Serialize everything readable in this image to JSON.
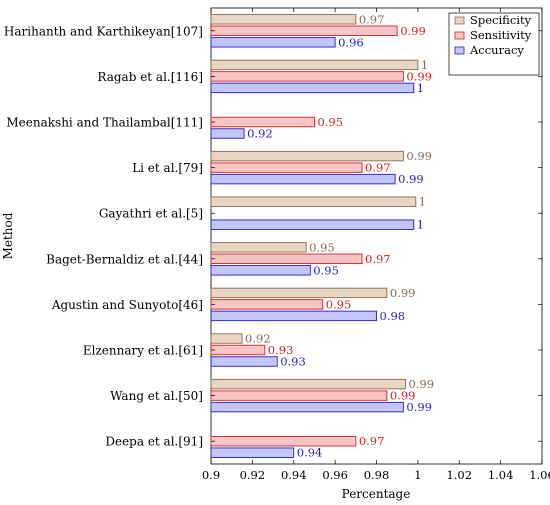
{
  "chart_data": {
    "type": "bar",
    "orientation": "horizontal",
    "title": "",
    "xlabel": "Percentage",
    "ylabel": "Method",
    "xlim": [
      0.9,
      1.06
    ],
    "xticks": [
      "0.9",
      "0.92",
      "0.94",
      "0.96",
      "0.98",
      "1",
      "1.02",
      "1.04",
      "1.06"
    ],
    "grid": false,
    "legend_position": "top-right",
    "categories": [
      "Harihanth and Karthikeyan[107]",
      "Ragab et al.[116]",
      "Meenakshi and Thailambal[111]",
      "Li et al.[79]",
      "Gayathri et al.[5]",
      "Baget-Bernaldiz et al.[44]",
      "Agustin and Sunyoto[46]",
      "Elzennary et al.[61]",
      "Wang et al.[50]",
      "Deepa et al.[91]"
    ],
    "series": [
      {
        "name": "Specificity",
        "fill": "#e8d5c4",
        "stroke": "#8c6b4e",
        "label_color": "#8c6b4e",
        "values": [
          0.97,
          1.0,
          null,
          0.993,
          0.999,
          0.946,
          0.985,
          0.915,
          0.994,
          null
        ],
        "labels": [
          "0.97",
          "1",
          "",
          "0.99",
          "1",
          "0.95",
          "0.99",
          "0.92",
          "0.99",
          ""
        ]
      },
      {
        "name": "Sensitivity",
        "fill": "#f9c6c6",
        "stroke": "#e02020",
        "label_color": "#e02020",
        "values": [
          0.99,
          0.993,
          0.95,
          0.973,
          null,
          0.973,
          0.954,
          0.926,
          0.985,
          0.97
        ],
        "labels": [
          "0.99",
          "0.99",
          "0.95",
          "0.97",
          "",
          "0.97",
          "0.95",
          "0.93",
          "0.99",
          "0.97"
        ]
      },
      {
        "name": "Accuracy",
        "fill": "#c3c6f6",
        "stroke": "#1f1fd6",
        "label_color": "#1f1fd6",
        "values": [
          0.96,
          0.998,
          0.916,
          0.989,
          0.998,
          0.948,
          0.98,
          0.932,
          0.993,
          0.94
        ],
        "labels": [
          "0.96",
          "1",
          "0.92",
          "0.99",
          "1",
          "0.95",
          "0.98",
          "0.93",
          "0.99",
          "0.94"
        ]
      }
    ]
  }
}
